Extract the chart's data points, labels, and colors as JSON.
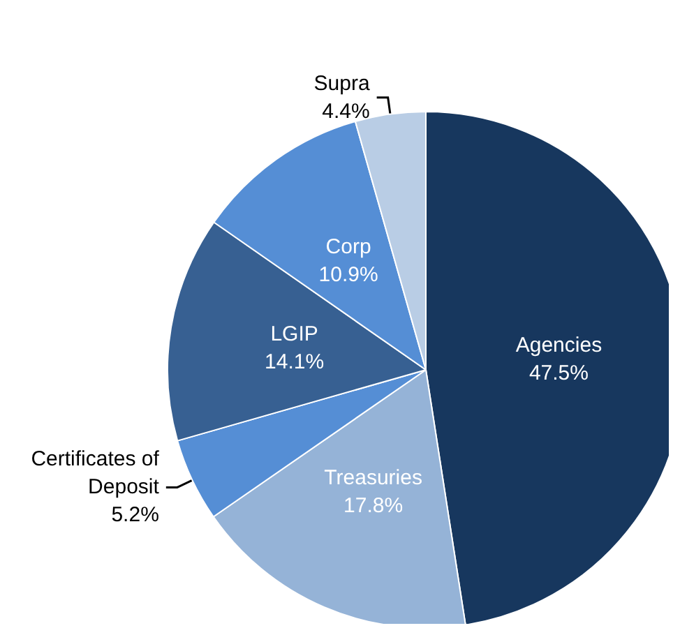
{
  "chart_data": {
    "type": "pie",
    "categories": [
      "Agencies",
      "Treasuries",
      "Certificates of Deposit",
      "LGIP",
      "Corp",
      "Supra"
    ],
    "values": [
      47.5,
      17.8,
      5.2,
      14.1,
      10.9,
      4.4
    ],
    "value_labels": [
      "47.5%",
      "17.8%",
      "5.2%",
      "14.1%",
      "10.9%",
      "4.4%"
    ],
    "colors": [
      "#17375e",
      "#95b3d7",
      "#558ed5",
      "#376092",
      "#558ed5",
      "#b9cde5"
    ],
    "legend": false
  }
}
